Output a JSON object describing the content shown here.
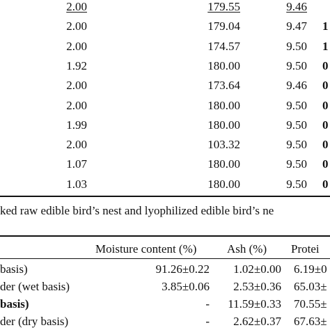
{
  "table1": {
    "rows": [
      {
        "a": "2.00",
        "b": "179.55",
        "c": "9.46",
        "d": "",
        "underline": true
      },
      {
        "a": "2.00",
        "b": "179.04",
        "c": "9.47",
        "d": "1",
        "underline": false
      },
      {
        "a": "2.00",
        "b": "174.57",
        "c": "9.50",
        "d": "1",
        "underline": false
      },
      {
        "a": "1.92",
        "b": "180.00",
        "c": "9.50",
        "d": "0",
        "underline": false
      },
      {
        "a": "2.00",
        "b": "173.64",
        "c": "9.46",
        "d": "0",
        "underline": false
      },
      {
        "a": "2.00",
        "b": "180.00",
        "c": "9.50",
        "d": "0",
        "underline": false
      },
      {
        "a": "1.99",
        "b": "180.00",
        "c": "9.50",
        "d": "0",
        "underline": false
      },
      {
        "a": "2.00",
        "b": "103.32",
        "c": "9.50",
        "d": "0",
        "underline": false
      },
      {
        "a": "1.07",
        "b": "180.00",
        "c": "9.50",
        "d": "0",
        "underline": false
      },
      {
        "a": "1.03",
        "b": "180.00",
        "c": "9.50",
        "d": "0",
        "underline": false
      }
    ]
  },
  "caption": "ked raw edible bird’s nest and lyophilized edible bird’s ne",
  "table2": {
    "headers": {
      "moisture": "Moisture content (%)",
      "ash": "Ash (%)",
      "protein": "Protei"
    },
    "rows": [
      {
        "label": "basis)",
        "moisture": "91.26±0.22",
        "ash": "1.02±0.00",
        "protein": "6.19±0"
      },
      {
        "label": "der (wet basis)",
        "moisture": "3.85±0.06",
        "ash": "2.53±0.36",
        "protein": "65.03±"
      },
      {
        "label": "basis)",
        "moisture": "-",
        "ash": "11.59±0.33",
        "protein": "70.55±"
      },
      {
        "label": "der (dry basis)",
        "moisture": "-",
        "ash": "2.62±0.37",
        "protein": "67.63±"
      }
    ]
  }
}
